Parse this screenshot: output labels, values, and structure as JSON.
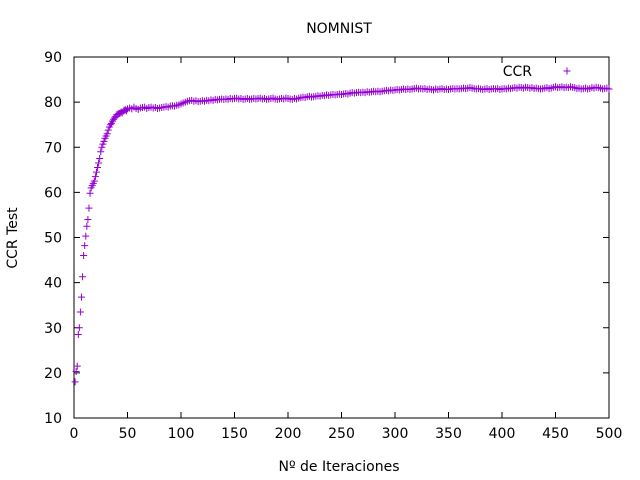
{
  "chart_data": {
    "type": "scatter",
    "title": "NOMNIST",
    "xlabel": "Nº de Iteraciones",
    "ylabel": "CCR Test",
    "xlim": [
      0,
      500
    ],
    "ylim": [
      10,
      90
    ],
    "xticks": [
      "0",
      "50",
      "100",
      "150",
      "200",
      "250",
      "300",
      "350",
      "400",
      "450",
      "500"
    ],
    "yticks": [
      "10",
      "20",
      "30",
      "40",
      "50",
      "60",
      "70",
      "80",
      "90"
    ],
    "grid": false,
    "legend_position": "top-right",
    "series": [
      {
        "name": "CCR",
        "color": "#9400d3",
        "marker": "plus",
        "points": [
          [
            1,
            18
          ],
          [
            2,
            20.3
          ],
          [
            3,
            21.5
          ],
          [
            4,
            28.5
          ],
          [
            5,
            30
          ],
          [
            6,
            33.5
          ],
          [
            7,
            36.8
          ],
          [
            8,
            41.3
          ],
          [
            9,
            46
          ],
          [
            10,
            48.2
          ],
          [
            11,
            50.3
          ],
          [
            12,
            52.5
          ],
          [
            13,
            54
          ],
          [
            14,
            56.5
          ],
          [
            15,
            59.8
          ],
          [
            16,
            61
          ],
          [
            17,
            61.5
          ],
          [
            18,
            62
          ],
          [
            19,
            62.5
          ],
          [
            20,
            63.5
          ],
          [
            21,
            64.5
          ],
          [
            22,
            65.5
          ],
          [
            23,
            66.5
          ],
          [
            24,
            67.5
          ],
          [
            25,
            69
          ],
          [
            26,
            70
          ],
          [
            27,
            70.7
          ],
          [
            28,
            71.3
          ],
          [
            29,
            72
          ],
          [
            30,
            72.5
          ],
          [
            31,
            73
          ],
          [
            32,
            73.8
          ],
          [
            33,
            74.5
          ],
          [
            34,
            75
          ],
          [
            35,
            75.3
          ],
          [
            36,
            75.8
          ],
          [
            37,
            76.2
          ],
          [
            38,
            76.5
          ],
          [
            39,
            76.8
          ],
          [
            40,
            77.2
          ],
          [
            41,
            77.3
          ],
          [
            42,
            77.5
          ],
          [
            43,
            77.5
          ],
          [
            44,
            77.8
          ],
          [
            45,
            77.6
          ],
          [
            46,
            78
          ],
          [
            47,
            78.2
          ],
          [
            48,
            78.3
          ],
          [
            49,
            78.1
          ],
          [
            50,
            78.5
          ],
          [
            52,
            78.7
          ],
          [
            54,
            78.5
          ],
          [
            56,
            78.9
          ],
          [
            58,
            78.6
          ],
          [
            60,
            78.4
          ],
          [
            62,
            78.7
          ],
          [
            64,
            78.8
          ],
          [
            66,
            78.9
          ],
          [
            68,
            78.6
          ],
          [
            70,
            78.8
          ],
          [
            72,
            78.9
          ],
          [
            74,
            78.7
          ],
          [
            76,
            78.8
          ],
          [
            78,
            78.6
          ],
          [
            80,
            78.7
          ],
          [
            82,
            78.8
          ],
          [
            84,
            78.9
          ],
          [
            86,
            79
          ],
          [
            88,
            78.9
          ],
          [
            90,
            79.1
          ],
          [
            92,
            79.2
          ],
          [
            94,
            79.1
          ],
          [
            96,
            79.3
          ],
          [
            98,
            79.4
          ],
          [
            100,
            79.6
          ],
          [
            102,
            79.8
          ],
          [
            104,
            80
          ],
          [
            106,
            80.2
          ],
          [
            108,
            80.3
          ],
          [
            110,
            80.4
          ],
          [
            112,
            80.2
          ],
          [
            114,
            80.3
          ],
          [
            116,
            80.1
          ],
          [
            118,
            80.2
          ],
          [
            120,
            80.3
          ],
          [
            122,
            80.2
          ],
          [
            124,
            80.4
          ],
          [
            126,
            80.3
          ],
          [
            128,
            80.5
          ],
          [
            130,
            80.4
          ],
          [
            132,
            80.6
          ],
          [
            134,
            80.5
          ],
          [
            136,
            80.6
          ],
          [
            138,
            80.7
          ],
          [
            140,
            80.6
          ],
          [
            142,
            80.7
          ],
          [
            144,
            80.6
          ],
          [
            146,
            80.8
          ],
          [
            148,
            80.7
          ],
          [
            150,
            80.8
          ],
          [
            152,
            80.9
          ],
          [
            154,
            80.7
          ],
          [
            156,
            80.8
          ],
          [
            158,
            80.6
          ],
          [
            160,
            80.7
          ],
          [
            162,
            80.8
          ],
          [
            164,
            80.6
          ],
          [
            166,
            80.7
          ],
          [
            168,
            80.8
          ],
          [
            170,
            80.7
          ],
          [
            172,
            80.8
          ],
          [
            174,
            80.9
          ],
          [
            176,
            80.7
          ],
          [
            178,
            80.8
          ],
          [
            180,
            80.6
          ],
          [
            182,
            80.7
          ],
          [
            184,
            80.8
          ],
          [
            186,
            80.9
          ],
          [
            188,
            80.7
          ],
          [
            190,
            80.6
          ],
          [
            192,
            80.7
          ],
          [
            194,
            80.8
          ],
          [
            196,
            80.7
          ],
          [
            198,
            80.9
          ],
          [
            200,
            80.8
          ],
          [
            202,
            80.7
          ],
          [
            204,
            80.6
          ],
          [
            206,
            80.8
          ],
          [
            208,
            80.7
          ],
          [
            210,
            80.9
          ],
          [
            212,
            81
          ],
          [
            214,
            81.1
          ],
          [
            216,
            81
          ],
          [
            218,
            81.2
          ],
          [
            220,
            81.3
          ],
          [
            222,
            81.1
          ],
          [
            224,
            81.2
          ],
          [
            226,
            81.3
          ],
          [
            228,
            81.4
          ],
          [
            230,
            81.3
          ],
          [
            232,
            81.5
          ],
          [
            234,
            81.4
          ],
          [
            236,
            81.6
          ],
          [
            238,
            81.5
          ],
          [
            240,
            81.6
          ],
          [
            242,
            81.7
          ],
          [
            244,
            81.6
          ],
          [
            246,
            81.7
          ],
          [
            248,
            81.8
          ],
          [
            250,
            81.7
          ],
          [
            252,
            81.8
          ],
          [
            254,
            81.9
          ],
          [
            256,
            81.8
          ],
          [
            258,
            82
          ],
          [
            260,
            82.1
          ],
          [
            262,
            82
          ],
          [
            264,
            82.1
          ],
          [
            266,
            82.2
          ],
          [
            268,
            82.1
          ],
          [
            270,
            82.2
          ],
          [
            272,
            82.1
          ],
          [
            274,
            82.3
          ],
          [
            276,
            82.2
          ],
          [
            278,
            82.3
          ],
          [
            280,
            82.4
          ],
          [
            282,
            82.3
          ],
          [
            284,
            82.4
          ],
          [
            286,
            82.3
          ],
          [
            288,
            82.4
          ],
          [
            290,
            82.5
          ],
          [
            292,
            82.6
          ],
          [
            294,
            82.5
          ],
          [
            296,
            82.7
          ],
          [
            298,
            82.6
          ],
          [
            300,
            82.7
          ],
          [
            302,
            82.8
          ],
          [
            304,
            82.7
          ],
          [
            306,
            82.8
          ],
          [
            308,
            82.9
          ],
          [
            310,
            82.8
          ],
          [
            312,
            82.9
          ],
          [
            314,
            82.8
          ],
          [
            316,
            82.9
          ],
          [
            318,
            83
          ],
          [
            320,
            83.1
          ],
          [
            322,
            82.9
          ],
          [
            324,
            83
          ],
          [
            326,
            82.9
          ],
          [
            328,
            83
          ],
          [
            330,
            82.8
          ],
          [
            332,
            82.9
          ],
          [
            334,
            82.8
          ],
          [
            336,
            82.7
          ],
          [
            338,
            82.9
          ],
          [
            340,
            82.8
          ],
          [
            342,
            82.9
          ],
          [
            344,
            83
          ],
          [
            346,
            82.8
          ],
          [
            348,
            82.9
          ],
          [
            350,
            82.8
          ],
          [
            352,
            82.9
          ],
          [
            354,
            83
          ],
          [
            356,
            82.9
          ],
          [
            358,
            83
          ],
          [
            360,
            82.9
          ],
          [
            362,
            83
          ],
          [
            364,
            83.1
          ],
          [
            366,
            83
          ],
          [
            368,
            83.1
          ],
          [
            370,
            83.2
          ],
          [
            372,
            83.1
          ],
          [
            374,
            83
          ],
          [
            376,
            82.9
          ],
          [
            378,
            83
          ],
          [
            380,
            82.9
          ],
          [
            382,
            82.8
          ],
          [
            384,
            82.9
          ],
          [
            386,
            83
          ],
          [
            388,
            82.8
          ],
          [
            390,
            82.9
          ],
          [
            392,
            83
          ],
          [
            394,
            82.9
          ],
          [
            396,
            83
          ],
          [
            398,
            82.8
          ],
          [
            400,
            82.9
          ],
          [
            402,
            83
          ],
          [
            404,
            82.9
          ],
          [
            406,
            83.1
          ],
          [
            408,
            83
          ],
          [
            410,
            83.1
          ],
          [
            412,
            83.2
          ],
          [
            414,
            83.1
          ],
          [
            416,
            83.3
          ],
          [
            418,
            83.2
          ],
          [
            420,
            83.1
          ],
          [
            422,
            83.3
          ],
          [
            424,
            83.2
          ],
          [
            426,
            83.1
          ],
          [
            428,
            83.2
          ],
          [
            430,
            83
          ],
          [
            432,
            83.1
          ],
          [
            434,
            83
          ],
          [
            436,
            82.9
          ],
          [
            438,
            83
          ],
          [
            440,
            83.1
          ],
          [
            442,
            83.2
          ],
          [
            444,
            83
          ],
          [
            446,
            83.1
          ],
          [
            448,
            83.3
          ],
          [
            450,
            83.4
          ],
          [
            452,
            83.2
          ],
          [
            454,
            83.3
          ],
          [
            456,
            83.4
          ],
          [
            458,
            83.2
          ],
          [
            460,
            83.3
          ],
          [
            462,
            83.2
          ],
          [
            464,
            83.4
          ],
          [
            466,
            83.3
          ],
          [
            468,
            83.2
          ],
          [
            470,
            83
          ],
          [
            472,
            83.1
          ],
          [
            474,
            82.9
          ],
          [
            476,
            83
          ],
          [
            478,
            83.1
          ],
          [
            480,
            82.9
          ],
          [
            482,
            83
          ],
          [
            484,
            83.2
          ],
          [
            486,
            83.1
          ],
          [
            488,
            83.3
          ],
          [
            490,
            83.2
          ],
          [
            492,
            83.1
          ],
          [
            494,
            82.9
          ],
          [
            496,
            83
          ],
          [
            498,
            83.1
          ],
          [
            500,
            82.9
          ]
        ]
      }
    ]
  }
}
